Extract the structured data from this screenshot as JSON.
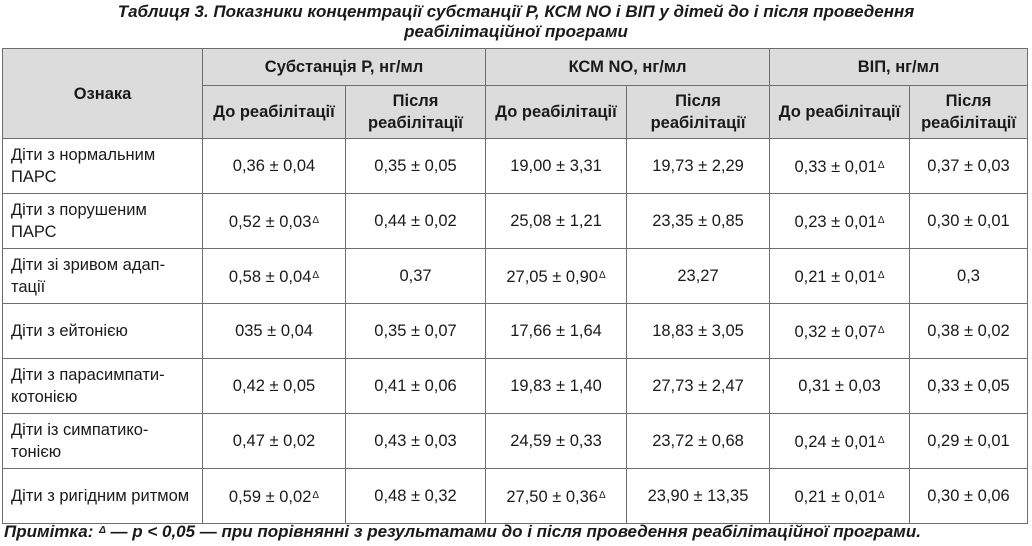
{
  "title": {
    "line1": "Таблиця 3. Показники концентрації субстанції Р, КСМ NO і ВІП у дітей до і після проведення",
    "line2": "реабілітаційної програми"
  },
  "header": {
    "feature": "Ознака",
    "groups": [
      "Субстанція Р, нг/мл",
      "КСМ NO, нг/мл",
      "ВІП, нг/мл"
    ],
    "subcols": [
      "До реабілітації",
      "Після реабілітації"
    ]
  },
  "rows": [
    {
      "label": "Діти з нормальним ПАРС",
      "cells": [
        {
          "value": "0,36 ± 0,04",
          "mark": ""
        },
        {
          "value": "0,35 ± 0,05",
          "mark": ""
        },
        {
          "value": "19,00 ± 3,31",
          "mark": ""
        },
        {
          "value": "19,73 ± 2,29",
          "mark": ""
        },
        {
          "value": "0,33 ± 0,01",
          "mark": "Δ"
        },
        {
          "value": "0,37 ± 0,03",
          "mark": ""
        }
      ]
    },
    {
      "label": "Діти з порушеним ПАРС",
      "cells": [
        {
          "value": "0,52 ± 0,03",
          "mark": "Δ"
        },
        {
          "value": "0,44 ± 0,02",
          "mark": ""
        },
        {
          "value": "25,08 ± 1,21",
          "mark": ""
        },
        {
          "value": "23,35 ± 0,85",
          "mark": ""
        },
        {
          "value": "0,23 ± 0,01",
          "mark": "Δ"
        },
        {
          "value": "0,30 ± 0,01",
          "mark": ""
        }
      ]
    },
    {
      "label": "Діти зі зривом адап-тації",
      "cells": [
        {
          "value": "0,58 ± 0,04",
          "mark": "Δ"
        },
        {
          "value": "0,37",
          "mark": ""
        },
        {
          "value": "27,05 ± 0,90",
          "mark": "Δ"
        },
        {
          "value": "23,27",
          "mark": ""
        },
        {
          "value": "0,21 ± 0,01",
          "mark": "Δ"
        },
        {
          "value": "0,3",
          "mark": ""
        }
      ]
    },
    {
      "label": "Діти з ейтонією",
      "cells": [
        {
          "value": "035 ± 0,04",
          "mark": ""
        },
        {
          "value": "0,35 ± 0,07",
          "mark": ""
        },
        {
          "value": "17,66 ± 1,64",
          "mark": ""
        },
        {
          "value": "18,83 ±  3,05",
          "mark": ""
        },
        {
          "value": "0,32 ± 0,07",
          "mark": "Δ"
        },
        {
          "value": "0,38 ± 0,02",
          "mark": ""
        }
      ]
    },
    {
      "label": "Діти з парасимпати-котонією",
      "cells": [
        {
          "value": "0,42 ± 0,05",
          "mark": ""
        },
        {
          "value": "0,41 ± 0,06",
          "mark": ""
        },
        {
          "value": "19,83 ± 1,40",
          "mark": ""
        },
        {
          "value": "27,73 ± 2,47",
          "mark": ""
        },
        {
          "value": "0,31 ± 0,03",
          "mark": ""
        },
        {
          "value": "0,33 ± 0,05",
          "mark": ""
        }
      ]
    },
    {
      "label": "Діти із симпатико-тонією",
      "cells": [
        {
          "value": "0,47 ± 0,02",
          "mark": ""
        },
        {
          "value": "0,43 ± 0,03",
          "mark": ""
        },
        {
          "value": "24,59 ± 0,33",
          "mark": ""
        },
        {
          "value": "23,72 ± 0,68",
          "mark": ""
        },
        {
          "value": "0,24 ± 0,01",
          "mark": "Δ"
        },
        {
          "value": "0,29 ± 0,01",
          "mark": ""
        }
      ]
    },
    {
      "label": "Діти з ригідним ритмом",
      "cells": [
        {
          "value": "0,59 ± 0,02",
          "mark": "Δ"
        },
        {
          "value": "0,48 ± 0,32",
          "mark": ""
        },
        {
          "value": "27,50 ± 0,36",
          "mark": "Δ"
        },
        {
          "value": "23,90 ± 13,35",
          "mark": ""
        },
        {
          "value": "0,21 ± 0,01",
          "mark": "Δ"
        },
        {
          "value": "0,30 ± 0,06",
          "mark": ""
        }
      ]
    }
  ],
  "footnote": {
    "prefix": "Примітка: ",
    "mark": "Δ",
    "text": " — р < 0,05 — при порівнянні з результатами до і після проведення реабілітаційної програми."
  }
}
